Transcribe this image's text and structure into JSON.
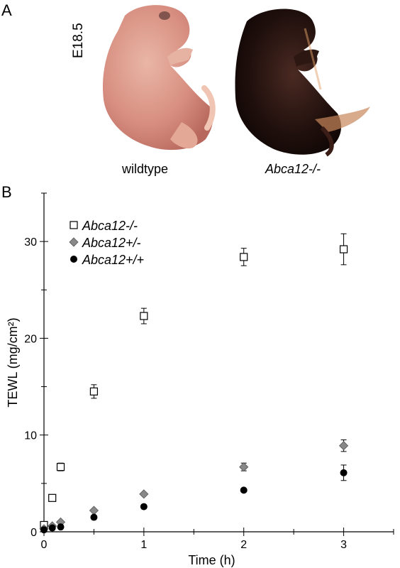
{
  "panels": {
    "a_label": "A",
    "b_label": "B",
    "stage": "E18.5",
    "wildtype_caption": "wildtype",
    "knockout_caption": "Abca12-/-"
  },
  "chart_data": {
    "type": "scatter",
    "xlabel": "Time (h)",
    "ylabel": "TEWL (mg/cm²)",
    "xlim": [
      0,
      3.5
    ],
    "ylim": [
      0,
      35
    ],
    "x_ticks": [
      0,
      1,
      2,
      3
    ],
    "x_tick_labels": [
      "0",
      "1",
      "2",
      "3"
    ],
    "y_ticks": [
      0,
      10,
      20,
      30
    ],
    "y_tick_labels": [
      "0",
      "10",
      "20",
      "30"
    ],
    "grid": false,
    "legend_position": "top-left",
    "series": [
      {
        "name": "Abca12-/-",
        "marker": "open-square",
        "color": "#000000",
        "x": [
          0,
          0.083,
          0.167,
          0.5,
          1,
          2,
          3
        ],
        "y": [
          0.7,
          3.5,
          6.7,
          14.5,
          22.3,
          28.4,
          29.2
        ],
        "err": [
          0.2,
          0.3,
          0.4,
          0.7,
          0.8,
          0.9,
          1.6
        ]
      },
      {
        "name": "Abca12+/-",
        "marker": "diamond",
        "color": "#888888",
        "x": [
          0,
          0.083,
          0.167,
          0.5,
          1,
          2,
          3
        ],
        "y": [
          0.3,
          0.6,
          1.0,
          2.2,
          3.9,
          6.7,
          8.9
        ],
        "err": [
          0.1,
          0.1,
          0.1,
          0.2,
          0.3,
          0.4,
          0.6
        ]
      },
      {
        "name": "Abca12+/+",
        "marker": "filled-circle",
        "color": "#000000",
        "x": [
          0,
          0.083,
          0.167,
          0.5,
          1,
          2,
          3
        ],
        "y": [
          0.2,
          0.4,
          0.5,
          1.5,
          2.6,
          4.3,
          6.1
        ],
        "err": [
          0.1,
          0.1,
          0.1,
          0.2,
          0.2,
          0.3,
          0.8
        ]
      }
    ]
  }
}
